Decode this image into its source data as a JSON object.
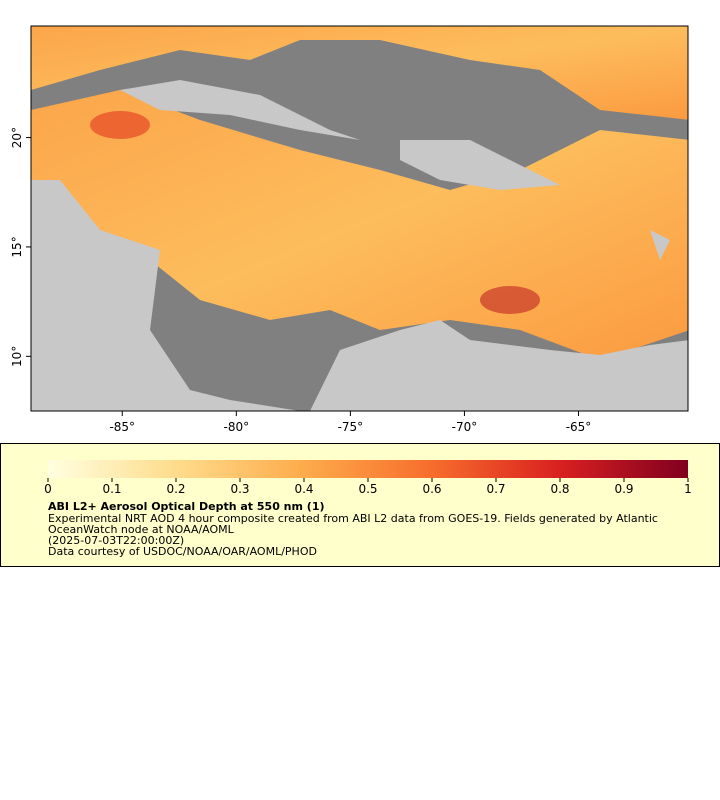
{
  "chart_data": {
    "type": "map",
    "xlim": [
      -89,
      -60.2
    ],
    "ylim": [
      7.5,
      25.1
    ],
    "xticks": [
      {
        "value": -85,
        "label": "-85°"
      },
      {
        "value": -80,
        "label": "-80°"
      },
      {
        "value": -75,
        "label": "-75°"
      },
      {
        "value": -70,
        "label": "-70°"
      },
      {
        "value": -65,
        "label": "-65°"
      }
    ],
    "yticks": [
      {
        "value": 10,
        "label": "10°"
      },
      {
        "value": 15,
        "label": "15°"
      },
      {
        "value": 20,
        "label": "20°"
      }
    ],
    "colorbar": {
      "lim": [
        0,
        1
      ],
      "ticks": [
        0,
        0.1,
        0.2,
        0.3,
        0.4,
        0.5,
        0.6,
        0.7,
        0.8,
        0.9,
        1
      ]
    },
    "title": "ABI L2+ Aerosol Optical Depth at 550 nm (1)",
    "description": [
      "Experimental NRT AOD 4 hour composite created from ABI L2 data from GOES-19. Fields generated by Atlantic",
      "OceanWatch node at NOAA/AOML",
      "(2025-07-03T22:00:00Z)",
      "Data courtesy of USDOC/NOAA/OAR/AOML/PHOD"
    ]
  }
}
